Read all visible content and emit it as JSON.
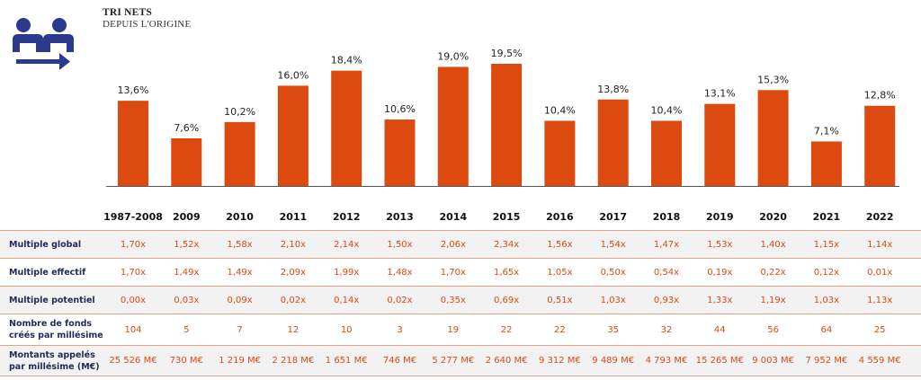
{
  "header": {
    "title": "TRI NETS",
    "subtitle": "DEPUIS L'ORIGINE"
  },
  "colors": {
    "bar": "#dc4a10",
    "logo": "#2b3a8c",
    "row_label": "#1f2a5a",
    "row_value": "#dc4a10"
  },
  "chart_data": {
    "type": "bar",
    "title": "TRI NETS",
    "subtitle": "DEPUIS L'ORIGINE",
    "categories": [
      "1987-2008",
      "2009",
      "2010",
      "2011",
      "2012",
      "2013",
      "2014",
      "2015",
      "2016",
      "2017",
      "2018",
      "2019",
      "2020",
      "2021",
      "2022"
    ],
    "values": [
      13.6,
      7.6,
      10.2,
      16.0,
      18.4,
      10.6,
      19.0,
      19.5,
      10.4,
      13.8,
      10.4,
      13.1,
      15.3,
      7.1,
      12.8
    ],
    "value_labels": [
      "13,6%",
      "7,6%",
      "10,2%",
      "16,0%",
      "18,4%",
      "10,6%",
      "19,0%",
      "19,5%",
      "10,4%",
      "13,8%",
      "10,4%",
      "13,1%",
      "15,3%",
      "7,1%",
      "12,8%"
    ],
    "ylim": [
      0,
      20
    ],
    "xlabel": "",
    "ylabel": "",
    "grid": false
  },
  "table": {
    "rows": [
      {
        "label": "Multiple global",
        "values": [
          "1,70x",
          "1,52x",
          "1,58x",
          "2,10x",
          "2,14x",
          "1,50x",
          "2,06x",
          "2,34x",
          "1,56x",
          "1,54x",
          "1,47x",
          "1,53x",
          "1,40x",
          "1,15x",
          "1,14x"
        ]
      },
      {
        "label": "Multiple effectif",
        "values": [
          "1,70x",
          "1,49x",
          "1,49x",
          "2,09x",
          "1,99x",
          "1,48x",
          "1,70x",
          "1,65x",
          "1,05x",
          "0,50x",
          "0,54x",
          "0,19x",
          "0,22x",
          "0,12x",
          "0,01x"
        ]
      },
      {
        "label": "Multiple potentiel",
        "values": [
          "0,00x",
          "0,03x",
          "0,09x",
          "0,02x",
          "0,14x",
          "0,02x",
          "0,35x",
          "0,69x",
          "0,51x",
          "1,03x",
          "0,93x",
          "1,33x",
          "1,19x",
          "1,03x",
          "1,13x"
        ]
      },
      {
        "label": "Nombre de fonds créés par millésime",
        "values": [
          "104",
          "5",
          "7",
          "12",
          "10",
          "3",
          "19",
          "22",
          "22",
          "35",
          "32",
          "44",
          "56",
          "64",
          "25"
        ]
      },
      {
        "label": "Montants appelés par millésime (M€)",
        "values": [
          "25 526 M€",
          "730 M€",
          "1 219 M€",
          "2 218 M€",
          "1 651 M€",
          "746 M€",
          "5 277 M€",
          "2 640 M€",
          "9 312 M€",
          "9 489 M€",
          "4 793 M€",
          "15 265 M€",
          "9 003 M€",
          "7 952 M€",
          "4 559 M€"
        ]
      }
    ]
  }
}
